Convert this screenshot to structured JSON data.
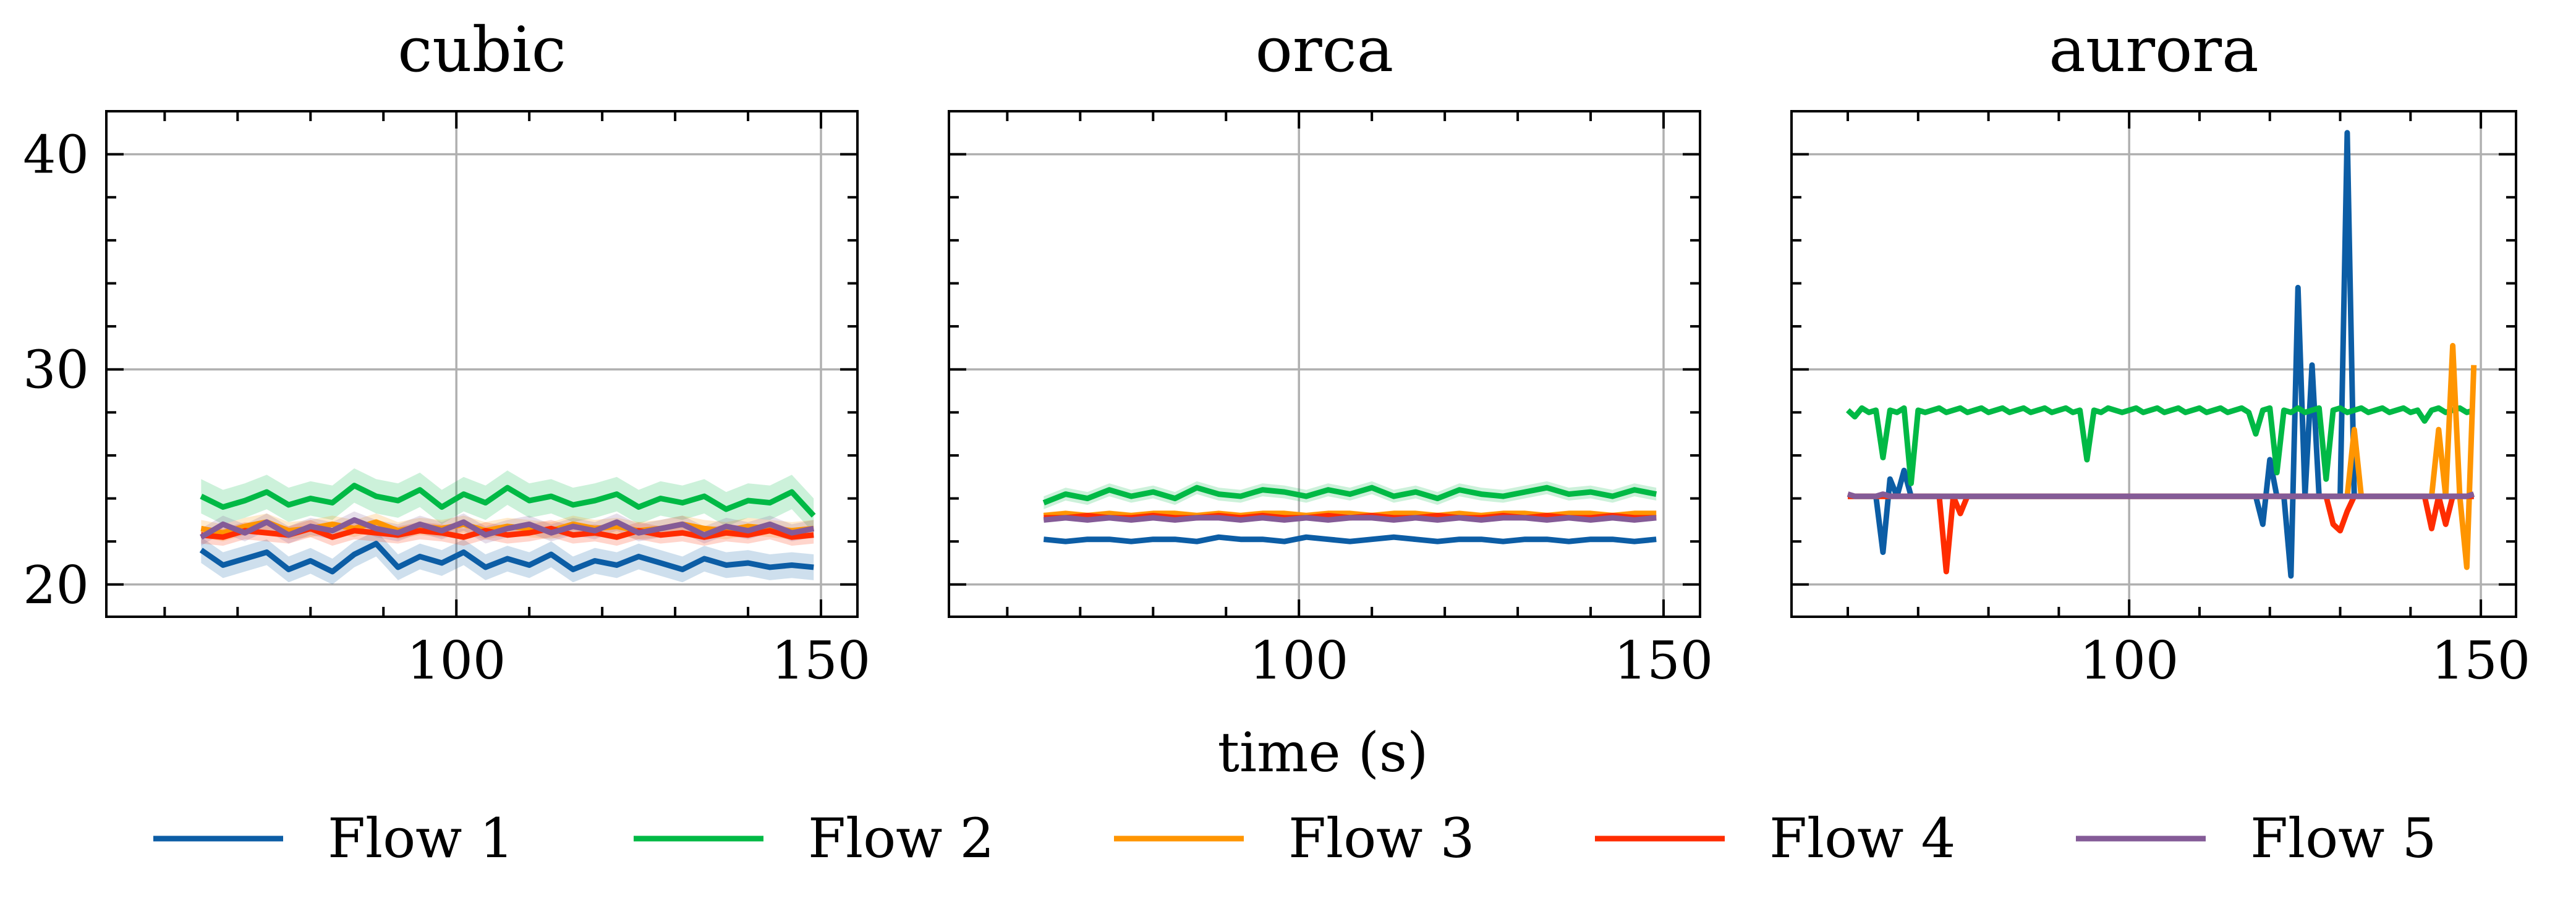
{
  "chart_data": {
    "type": "line",
    "xlabel": "time (s)",
    "x_ticks": [
      100,
      150
    ],
    "y_ticks": [
      20,
      30,
      40
    ],
    "xlim": [
      52,
      155
    ],
    "ylim": [
      18.5,
      42
    ],
    "grid": true,
    "legend_position": "bottom",
    "series_styles": [
      {
        "name": "Flow 1",
        "color": "#0C5DA5"
      },
      {
        "name": "Flow 2",
        "color": "#00B945"
      },
      {
        "name": "Flow 3",
        "color": "#FF9500"
      },
      {
        "name": "Flow 4",
        "color": "#FF2C00"
      },
      {
        "name": "Flow 5",
        "color": "#845B97"
      }
    ],
    "panels": [
      {
        "title": "cubic",
        "x": [
          65,
          68,
          71,
          74,
          77,
          80,
          83,
          86,
          89,
          92,
          95,
          98,
          101,
          104,
          107,
          110,
          113,
          116,
          119,
          122,
          125,
          128,
          131,
          134,
          137,
          140,
          143,
          146,
          149
        ],
        "series": [
          {
            "name": "Flow 1",
            "values": [
              21.6,
              20.9,
              21.2,
              21.5,
              20.7,
              21.1,
              20.6,
              21.4,
              21.9,
              20.8,
              21.3,
              21.0,
              21.5,
              20.8,
              21.2,
              20.9,
              21.4,
              20.7,
              21.1,
              20.9,
              21.3,
              21.0,
              20.7,
              21.2,
              20.9,
              21.0,
              20.8,
              20.9,
              20.8
            ],
            "band": 0.6
          },
          {
            "name": "Flow 2",
            "values": [
              24.1,
              23.6,
              23.9,
              24.3,
              23.7,
              24.0,
              23.8,
              24.6,
              24.1,
              23.9,
              24.4,
              23.6,
              24.2,
              23.8,
              24.5,
              23.9,
              24.1,
              23.7,
              23.9,
              24.2,
              23.6,
              24.0,
              23.8,
              24.1,
              23.5,
              23.9,
              23.8,
              24.3,
              23.2
            ],
            "band": 0.8
          },
          {
            "name": "Flow 3",
            "values": [
              22.6,
              22.4,
              22.7,
              22.9,
              22.5,
              22.6,
              22.8,
              22.6,
              22.9,
              22.5,
              22.7,
              22.6,
              22.8,
              22.5,
              22.7,
              22.6,
              22.5,
              22.8,
              22.6,
              22.7,
              22.5,
              22.6,
              22.8,
              22.6,
              22.5,
              22.7,
              22.6,
              22.5,
              22.6
            ],
            "band": 0.4
          },
          {
            "name": "Flow 4",
            "values": [
              22.3,
              22.2,
              22.5,
              22.4,
              22.3,
              22.6,
              22.2,
              22.5,
              22.4,
              22.3,
              22.5,
              22.4,
              22.2,
              22.5,
              22.3,
              22.4,
              22.6,
              22.3,
              22.4,
              22.2,
              22.5,
              22.3,
              22.4,
              22.2,
              22.4,
              22.3,
              22.5,
              22.2,
              22.3
            ],
            "band": 0.4
          },
          {
            "name": "Flow 5",
            "values": [
              22.2,
              22.8,
              22.4,
              22.9,
              22.3,
              22.7,
              22.5,
              23.0,
              22.6,
              22.4,
              22.8,
              22.5,
              22.9,
              22.3,
              22.6,
              22.8,
              22.4,
              22.7,
              22.5,
              22.9,
              22.4,
              22.6,
              22.8,
              22.3,
              22.7,
              22.5,
              22.8,
              22.4,
              22.6
            ],
            "band": 0.4
          }
        ]
      },
      {
        "title": "orca",
        "x": [
          65,
          68,
          71,
          74,
          77,
          80,
          83,
          86,
          89,
          92,
          95,
          98,
          101,
          104,
          107,
          110,
          113,
          116,
          119,
          122,
          125,
          128,
          131,
          134,
          137,
          140,
          143,
          146,
          149
        ],
        "series": [
          {
            "name": "Flow 1",
            "values": [
              22.1,
              22.0,
              22.1,
              22.1,
              22.0,
              22.1,
              22.1,
              22.0,
              22.2,
              22.1,
              22.1,
              22.0,
              22.2,
              22.1,
              22.0,
              22.1,
              22.2,
              22.1,
              22.0,
              22.1,
              22.1,
              22.0,
              22.1,
              22.1,
              22.0,
              22.1,
              22.1,
              22.0,
              22.1
            ],
            "band": 0.1
          },
          {
            "name": "Flow 2",
            "values": [
              23.8,
              24.2,
              24.0,
              24.4,
              24.1,
              24.3,
              24.0,
              24.5,
              24.2,
              24.1,
              24.4,
              24.3,
              24.1,
              24.4,
              24.2,
              24.5,
              24.1,
              24.3,
              24.0,
              24.4,
              24.2,
              24.1,
              24.3,
              24.5,
              24.2,
              24.3,
              24.1,
              24.4,
              24.2
            ],
            "band": 0.3
          },
          {
            "name": "Flow 3",
            "values": [
              23.2,
              23.3,
              23.2,
              23.3,
              23.2,
              23.3,
              23.3,
              23.2,
              23.3,
              23.2,
              23.3,
              23.3,
              23.2,
              23.3,
              23.3,
              23.2,
              23.3,
              23.3,
              23.2,
              23.3,
              23.2,
              23.3,
              23.3,
              23.2,
              23.3,
              23.3,
              23.2,
              23.3,
              23.3
            ],
            "band": 0.15
          },
          {
            "name": "Flow 4",
            "values": [
              23.1,
              23.1,
              23.2,
              23.1,
              23.1,
              23.2,
              23.1,
              23.1,
              23.2,
              23.1,
              23.2,
              23.1,
              23.1,
              23.2,
              23.1,
              23.2,
              23.1,
              23.1,
              23.2,
              23.1,
              23.1,
              23.2,
              23.1,
              23.2,
              23.1,
              23.1,
              23.2,
              23.1,
              23.1
            ],
            "band": 0.1
          },
          {
            "name": "Flow 5",
            "values": [
              23.0,
              23.1,
              23.0,
              23.1,
              23.0,
              23.1,
              23.0,
              23.1,
              23.1,
              23.0,
              23.1,
              23.0,
              23.1,
              23.0,
              23.1,
              23.1,
              23.0,
              23.1,
              23.0,
              23.1,
              23.0,
              23.1,
              23.1,
              23.0,
              23.1,
              23.0,
              23.1,
              23.0,
              23.1
            ],
            "band": 0.1
          }
        ]
      },
      {
        "title": "aurora",
        "x": [
          60,
          61,
          62,
          63,
          64,
          65,
          66,
          67,
          68,
          69,
          70,
          71,
          72,
          73,
          74,
          75,
          76,
          77,
          78,
          79,
          80,
          81,
          82,
          83,
          84,
          85,
          86,
          87,
          88,
          89,
          90,
          91,
          92,
          93,
          94,
          95,
          96,
          97,
          98,
          99,
          100,
          101,
          102,
          103,
          104,
          105,
          106,
          107,
          108,
          109,
          110,
          111,
          112,
          113,
          114,
          115,
          116,
          117,
          118,
          119,
          120,
          121,
          122,
          123,
          124,
          125,
          126,
          127,
          128,
          129,
          130,
          131,
          132,
          133,
          134,
          135,
          136,
          137,
          138,
          139,
          140,
          141,
          142,
          143,
          144,
          145,
          146,
          147,
          148,
          149
        ],
        "series": [
          {
            "name": "Flow 1",
            "values": [
              24.1,
              24.1,
              24.1,
              24.1,
              24.1,
              21.5,
              24.9,
              24.1,
              25.3,
              24.1,
              24.1,
              24.1,
              24.1,
              24.1,
              24.1,
              24.1,
              24.1,
              24.1,
              24.1,
              24.1,
              24.1,
              24.1,
              24.1,
              24.1,
              24.1,
              24.1,
              24.1,
              24.1,
              24.1,
              24.1,
              24.1,
              24.1,
              24.1,
              24.1,
              24.1,
              24.1,
              24.1,
              24.1,
              24.1,
              24.1,
              24.1,
              24.1,
              24.1,
              24.1,
              24.1,
              24.1,
              24.1,
              24.1,
              24.1,
              24.1,
              24.1,
              24.1,
              24.1,
              24.1,
              24.1,
              24.1,
              24.1,
              24.1,
              24.1,
              22.8,
              25.8,
              24.1,
              24.1,
              20.4,
              33.8,
              24.1,
              30.2,
              24.1,
              24.1,
              24.1,
              24.1,
              41.0,
              24.1,
              24.1,
              24.1,
              24.1,
              24.1,
              24.1,
              24.1,
              24.1,
              24.1,
              24.1,
              24.1,
              24.1,
              24.1,
              24.1,
              24.1,
              24.1,
              24.1,
              24.1
            ]
          },
          {
            "name": "Flow 2",
            "values": [
              28.1,
              27.8,
              28.2,
              28.0,
              28.1,
              25.9,
              28.1,
              28.0,
              28.2,
              24.7,
              28.1,
              28.0,
              28.1,
              28.2,
              28.0,
              28.1,
              28.2,
              28.0,
              28.1,
              28.2,
              28.0,
              28.1,
              28.2,
              28.0,
              28.1,
              28.2,
              28.0,
              28.1,
              28.2,
              28.0,
              28.1,
              28.2,
              28.0,
              28.1,
              25.8,
              28.1,
              28.0,
              28.2,
              28.1,
              28.0,
              28.1,
              28.2,
              28.0,
              28.1,
              28.2,
              28.0,
              28.1,
              28.2,
              28.0,
              28.1,
              28.2,
              28.0,
              28.1,
              28.2,
              28.0,
              28.1,
              28.2,
              28.0,
              27.0,
              28.1,
              28.2,
              25.2,
              28.1,
              28.0,
              28.2,
              28.0,
              28.1,
              28.2,
              24.9,
              28.1,
              28.2,
              28.0,
              28.1,
              28.2,
              28.0,
              28.1,
              28.2,
              28.0,
              28.1,
              28.2,
              28.0,
              28.1,
              27.6,
              28.1,
              28.2,
              28.0,
              28.1,
              28.2,
              28.0,
              28.1
            ]
          },
          {
            "name": "Flow 3",
            "values": [
              24.1,
              24.1,
              24.1,
              24.1,
              24.1,
              24.1,
              24.1,
              24.1,
              24.1,
              24.1,
              24.1,
              24.1,
              24.1,
              24.1,
              24.1,
              24.1,
              24.1,
              24.1,
              24.1,
              24.1,
              24.1,
              24.1,
              24.1,
              24.1,
              24.1,
              24.1,
              24.1,
              24.1,
              24.1,
              24.1,
              24.1,
              24.1,
              24.1,
              24.1,
              24.1,
              24.1,
              24.1,
              24.1,
              24.1,
              24.1,
              24.1,
              24.1,
              24.1,
              24.1,
              24.1,
              24.1,
              24.1,
              24.1,
              24.1,
              24.1,
              24.1,
              24.1,
              24.1,
              24.1,
              24.1,
              24.1,
              24.1,
              24.1,
              24.1,
              24.1,
              24.1,
              24.1,
              24.1,
              24.1,
              24.1,
              24.1,
              24.1,
              24.1,
              24.1,
              24.1,
              24.1,
              24.1,
              27.2,
              24.1,
              24.1,
              24.1,
              24.1,
              24.1,
              24.1,
              24.1,
              24.1,
              24.1,
              24.1,
              24.1,
              27.2,
              24.1,
              31.1,
              24.1,
              20.8,
              30.2
            ]
          },
          {
            "name": "Flow 4",
            "values": [
              24.1,
              24.1,
              24.1,
              24.1,
              24.1,
              24.1,
              24.1,
              24.1,
              24.1,
              24.1,
              24.1,
              24.1,
              24.1,
              24.1,
              20.6,
              24.1,
              23.3,
              24.1,
              24.1,
              24.1,
              24.1,
              24.1,
              24.1,
              24.1,
              24.1,
              24.1,
              24.1,
              24.1,
              24.1,
              24.1,
              24.1,
              24.1,
              24.1,
              24.1,
              24.1,
              24.1,
              24.1,
              24.1,
              24.1,
              24.1,
              24.1,
              24.1,
              24.1,
              24.1,
              24.1,
              24.1,
              24.1,
              24.1,
              24.1,
              24.1,
              24.1,
              24.1,
              24.1,
              24.1,
              24.1,
              24.1,
              24.1,
              24.1,
              24.1,
              24.1,
              24.1,
              24.1,
              24.1,
              24.1,
              24.1,
              24.1,
              24.1,
              24.1,
              24.1,
              22.8,
              22.5,
              23.4,
              24.1,
              24.1,
              24.1,
              24.1,
              24.1,
              24.1,
              24.1,
              24.1,
              24.1,
              24.1,
              24.1,
              22.6,
              24.1,
              22.8,
              24.1,
              24.1,
              24.1,
              24.1
            ]
          },
          {
            "name": "Flow 5",
            "values": [
              24.2,
              24.1,
              24.1,
              24.1,
              24.1,
              24.2,
              24.1,
              24.1,
              24.1,
              24.1,
              24.1,
              24.1,
              24.1,
              24.1,
              24.1,
              24.1,
              24.1,
              24.1,
              24.1,
              24.1,
              24.1,
              24.1,
              24.1,
              24.1,
              24.1,
              24.1,
              24.1,
              24.1,
              24.1,
              24.1,
              24.1,
              24.1,
              24.1,
              24.1,
              24.1,
              24.1,
              24.1,
              24.1,
              24.1,
              24.1,
              24.1,
              24.1,
              24.1,
              24.1,
              24.1,
              24.1,
              24.1,
              24.1,
              24.1,
              24.1,
              24.1,
              24.1,
              24.1,
              24.1,
              24.1,
              24.1,
              24.1,
              24.1,
              24.1,
              24.1,
              24.1,
              24.1,
              24.1,
              24.1,
              24.1,
              24.1,
              24.1,
              24.1,
              24.1,
              24.1,
              24.1,
              24.1,
              24.1,
              24.1,
              24.1,
              24.1,
              24.1,
              24.1,
              24.1,
              24.1,
              24.1,
              24.1,
              24.1,
              24.1,
              24.1,
              24.1,
              24.1,
              24.1,
              24.1,
              24.2
            ]
          }
        ]
      }
    ]
  }
}
